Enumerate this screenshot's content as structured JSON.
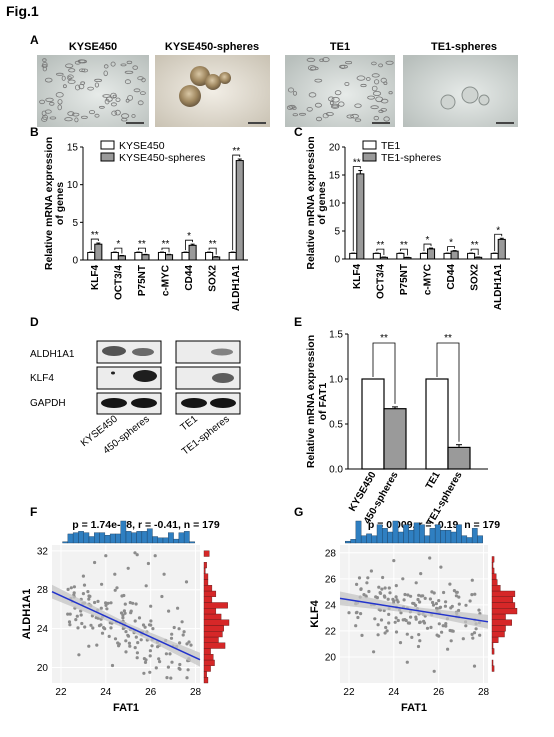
{
  "figure_title": "Fig.1",
  "panels": {
    "A": {
      "letter": "A",
      "images": [
        {
          "label": "KYSE450",
          "kind": "adherent-cells"
        },
        {
          "label": "KYSE450-spheres",
          "kind": "spheres"
        },
        {
          "label": "TE1",
          "kind": "adherent-cells"
        },
        {
          "label": "TE1-spheres",
          "kind": "spheres"
        }
      ]
    },
    "B": {
      "letter": "B"
    },
    "C": {
      "letter": "C"
    },
    "D": {
      "letter": "D",
      "rows": [
        "ALDH1A1",
        "KLF4",
        "GAPDH"
      ],
      "lanes": [
        "KYSE450",
        "450-spheres",
        "TE1",
        "TE1-spheres"
      ]
    },
    "E": {
      "letter": "E"
    },
    "F": {
      "letter": "F",
      "stats": "p = 1.74e-08, r = -0.41, n = 179"
    },
    "G": {
      "letter": "G",
      "stats": "p = 0.009, r = -0.19, n = 179"
    }
  },
  "colors": {
    "bar_white": "#ffffff",
    "bar_gray": "#9a9a9a",
    "hist_top": "#2f7fc1",
    "hist_right": "#d62728",
    "fit_line": "#2233cc",
    "ci_band": "#c4c4c4",
    "points": "#8c8c8c",
    "scatter_bg": "#f2f2f2"
  },
  "chart_data": [
    {
      "id": "B",
      "type": "bar",
      "ylabel": "Relative mRNA expression of genes",
      "ylim": [
        0,
        15
      ],
      "yticks": [
        0,
        5,
        10,
        15
      ],
      "legend_position": "top",
      "categories": [
        "KLF4",
        "OCT3/4",
        "P75NT",
        "c-MYC",
        "CD44",
        "SOX2",
        "ALDH1A1"
      ],
      "series": [
        {
          "name": "KYSE450",
          "values": [
            1,
            1,
            1,
            1,
            1,
            1,
            1
          ],
          "errors": [
            0.05,
            0.05,
            0.05,
            0.05,
            0.05,
            0.05,
            0.05
          ]
        },
        {
          "name": "KYSE450-spheres",
          "values": [
            2.1,
            0.55,
            0.7,
            0.7,
            1.95,
            0.4,
            13.2
          ],
          "errors": [
            0.15,
            0.05,
            0.05,
            0.05,
            0.15,
            0.05,
            0.2
          ]
        }
      ],
      "significance": [
        "**",
        "*",
        "**",
        "**",
        "*",
        "**",
        "**"
      ]
    },
    {
      "id": "C",
      "type": "bar",
      "ylabel": "Relative mRNA expression of genes",
      "ylim": [
        0,
        20
      ],
      "yticks": [
        0,
        5,
        10,
        15,
        20
      ],
      "legend_position": "top",
      "categories": [
        "KLF4",
        "OCT3/4",
        "P75NT",
        "c-MYC",
        "CD44",
        "SOX2",
        "ALDH1A1"
      ],
      "series": [
        {
          "name": "TE1",
          "values": [
            1,
            1,
            1,
            1,
            1,
            1,
            1
          ],
          "errors": [
            0.05,
            0.05,
            0.05,
            0.05,
            0.05,
            0.05,
            0.05
          ]
        },
        {
          "name": "TE1-spheres",
          "values": [
            15.2,
            0.3,
            0.25,
            1.8,
            1.4,
            0.3,
            3.5
          ],
          "errors": [
            0.6,
            0.05,
            0.05,
            0.15,
            0.1,
            0.05,
            0.2
          ]
        }
      ],
      "significance": [
        "**",
        "**",
        "**",
        "*",
        "*",
        "**",
        "*"
      ]
    },
    {
      "id": "E",
      "type": "bar",
      "ylabel": "Relative mRNA expression of FAT1",
      "ylim": [
        0,
        1.5
      ],
      "yticks": [
        0.0,
        0.5,
        1.0,
        1.5
      ],
      "categories": [
        "KYSE450",
        "450-spheres",
        "TE1",
        "TE1-spheres"
      ],
      "values": [
        1.0,
        0.67,
        1.0,
        0.24
      ],
      "errors": [
        0,
        0.02,
        0,
        0.03
      ],
      "fill": [
        "white",
        "gray",
        "white",
        "gray"
      ],
      "significance": [
        "**",
        "**"
      ]
    },
    {
      "id": "F",
      "type": "scatter",
      "title": "p = 1.74e-08, r = -0.41, n = 179",
      "xlabel": "FAT1",
      "ylabel": "ALDH1A1",
      "xlim": [
        21.6,
        28.2
      ],
      "ylim": [
        18.4,
        32.6
      ],
      "xticks": [
        22,
        24,
        26,
        28
      ],
      "yticks": [
        20,
        24,
        28,
        32
      ],
      "fit": {
        "x": [
          21.6,
          28.2
        ],
        "y": [
          27.8,
          20.8
        ]
      },
      "n_points": 179,
      "points": [
        [
          23.5,
          30.8
        ],
        [
          25.4,
          31.6
        ],
        [
          22.9,
          27.0
        ],
        [
          22.5,
          26.8
        ],
        [
          23.8,
          26.1
        ],
        [
          24.2,
          24.6
        ],
        [
          25.0,
          30.2
        ],
        [
          26.2,
          31.5
        ],
        [
          25.3,
          31.8
        ],
        [
          25.9,
          30.7
        ],
        [
          24.8,
          27.4
        ],
        [
          26.5,
          27.3
        ],
        [
          26.8,
          25.8
        ],
        [
          27.6,
          28.8
        ],
        [
          24.6,
          22.4
        ],
        [
          25.6,
          23.4
        ],
        [
          26.1,
          24.0
        ],
        [
          27.0,
          22.2
        ],
        [
          27.8,
          22.3
        ],
        [
          24.3,
          20.2
        ],
        [
          23.4,
          25.3
        ],
        [
          22.4,
          24.4
        ],
        [
          26.4,
          20.6
        ],
        [
          27.3,
          20.3
        ],
        [
          26.9,
          18.9
        ],
        [
          25.7,
          19.4
        ],
        [
          24.9,
          21.6
        ],
        [
          25.2,
          26.6
        ],
        [
          23.0,
          29.4
        ],
        [
          24.0,
          31.5
        ],
        [
          25.8,
          28.4
        ],
        [
          26.6,
          29.6
        ],
        [
          27.4,
          24.7
        ],
        [
          23.6,
          22.3
        ],
        [
          22.8,
          21.3
        ],
        [
          24.5,
          28.2
        ],
        [
          25.5,
          25.1
        ],
        [
          26.3,
          22.6
        ],
        [
          26.7,
          21.4
        ],
        [
          27.2,
          26.1
        ],
        [
          23.2,
          27.8
        ],
        [
          24.1,
          26.6
        ],
        [
          22.6,
          28.3
        ],
        [
          25.1,
          23.9
        ],
        [
          24.4,
          29.6
        ],
        [
          26.0,
          26.3
        ],
        [
          27.7,
          20.9
        ],
        [
          25.4,
          21.0
        ],
        [
          23.9,
          24.1
        ],
        [
          24.7,
          25.6
        ]
      ]
    },
    {
      "id": "G",
      "type": "scatter",
      "title": "p = 0.009, r = -0.19, n = 179",
      "xlabel": "FAT1",
      "ylabel": "KLF4",
      "xlim": [
        21.6,
        28.2
      ],
      "ylim": [
        18.0,
        28.6
      ],
      "xticks": [
        22,
        24,
        26,
        28
      ],
      "yticks": [
        20,
        22,
        24,
        26,
        28
      ],
      "fit": {
        "x": [
          21.6,
          28.2
        ],
        "y": [
          24.5,
          22.7
        ]
      },
      "n_points": 179,
      "points": [
        [
          22.0,
          23.4
        ],
        [
          22.5,
          24.6
        ],
        [
          23.0,
          26.6
        ],
        [
          23.4,
          23.6
        ],
        [
          23.7,
          22.0
        ],
        [
          24.0,
          27.4
        ],
        [
          24.2,
          22.8
        ],
        [
          24.5,
          24.8
        ],
        [
          24.8,
          21.5
        ],
        [
          25.0,
          25.7
        ],
        [
          25.3,
          23.3
        ],
        [
          25.6,
          27.6
        ],
        [
          25.9,
          24.1
        ],
        [
          26.2,
          22.4
        ],
        [
          26.5,
          25.6
        ],
        [
          26.8,
          23.1
        ],
        [
          27.1,
          21.4
        ],
        [
          27.4,
          24.3
        ],
        [
          27.8,
          23.6
        ],
        [
          23.1,
          20.4
        ],
        [
          24.6,
          19.6
        ],
        [
          25.8,
          18.9
        ],
        [
          26.4,
          20.6
        ],
        [
          27.6,
          19.3
        ],
        [
          22.8,
          25.7
        ],
        [
          24.4,
          26.0
        ],
        [
          25.2,
          26.4
        ],
        [
          26.1,
          26.9
        ],
        [
          23.6,
          24.6
        ],
        [
          25.5,
          22.2
        ],
        [
          24.9,
          24.1
        ],
        [
          23.8,
          25.3
        ],
        [
          26.7,
          25.1
        ],
        [
          27.2,
          22.7
        ],
        [
          22.3,
          22.4
        ],
        [
          25.1,
          20.8
        ],
        [
          26.0,
          21.6
        ],
        [
          24.1,
          23.0
        ],
        [
          26.9,
          24.6
        ],
        [
          23.3,
          21.7
        ],
        [
          25.7,
          25.0
        ],
        [
          24.7,
          22.6
        ],
        [
          26.3,
          23.9
        ],
        [
          27.5,
          25.9
        ],
        [
          24.3,
          21.1
        ],
        [
          25.4,
          24.5
        ],
        [
          23.5,
          26.1
        ],
        [
          26.6,
          22.0
        ],
        [
          25.0,
          22.9
        ],
        [
          24.0,
          24.3
        ]
      ]
    }
  ]
}
